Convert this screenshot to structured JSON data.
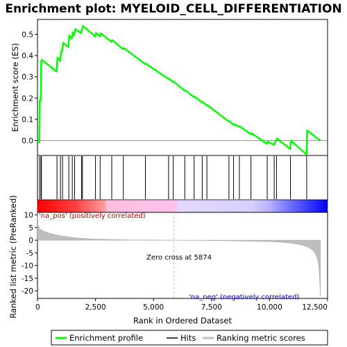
{
  "chart_data": {
    "type": "line",
    "title": "Enrichment plot: MYELOID_CELL_DIFFERENTIATION",
    "xlabel": "Rank in Ordered Dataset",
    "ylabel_top": "Enrichment score (ES)",
    "ylabel_bottom": "Ranked list metric (PreRanked)",
    "xlim": [
      0,
      12500
    ],
    "x_ticks": [
      0,
      2500,
      5000,
      7500,
      10000,
      12500
    ],
    "x_tick_labels": [
      "0",
      "2,500",
      "5,000",
      "7,500",
      "10,000",
      "12,500"
    ],
    "es_ylim": [
      -0.07,
      0.57
    ],
    "es_ticks": [
      0.0,
      0.1,
      0.2,
      0.3,
      0.4,
      0.5
    ],
    "es_tick_labels": [
      "0.0",
      "0.1",
      "0.2",
      "0.3",
      "0.4",
      "0.5"
    ],
    "metric_ylim": [
      -23,
      11
    ],
    "metric_ticks": [
      10,
      5,
      0,
      -5,
      -10,
      -15,
      -20
    ],
    "metric_tick_labels": [
      "10",
      "5",
      "0",
      "-5",
      "-10",
      "-15",
      "-20"
    ],
    "dataset_size": 12190,
    "zero_cross": 5874,
    "hits": [
      90,
      150,
      170,
      840,
      990,
      1080,
      1350,
      1500,
      1600,
      1900,
      1940,
      2500,
      2700,
      3200,
      3700,
      4650,
      5650,
      5850,
      6350,
      6750,
      7100,
      7300,
      8250,
      8450,
      8700,
      9200,
      9900,
      10200,
      10300,
      10900,
      11600
    ],
    "es_profile": {
      "x": [
        0,
        80,
        100,
        150,
        160,
        190,
        820,
        860,
        980,
        1020,
        1060,
        1110,
        1330,
        1370,
        1480,
        1520,
        1580,
        1630,
        1880,
        1900,
        1930,
        1960,
        2490,
        2520,
        2690,
        2720,
        3190,
        3220,
        3690,
        3720,
        4640,
        4670,
        5640,
        5670,
        5840,
        5870,
        6340,
        6370,
        6740,
        6770,
        7090,
        7120,
        7290,
        7320,
        8240,
        8270,
        8440,
        8470,
        8690,
        8720,
        9190,
        9220,
        9890,
        9920,
        10190,
        10220,
        10290,
        10320,
        10890,
        10920,
        11590,
        11620,
        12190
      ],
      "y": [
        0.0,
        -0.008,
        0.19,
        0.19,
        0.375,
        0.38,
        0.325,
        0.39,
        0.375,
        0.42,
        0.42,
        0.46,
        0.44,
        0.495,
        0.48,
        0.51,
        0.495,
        0.525,
        0.505,
        0.518,
        0.525,
        0.54,
        0.49,
        0.507,
        0.49,
        0.505,
        0.465,
        0.473,
        0.43,
        0.435,
        0.36,
        0.362,
        0.29,
        0.292,
        0.275,
        0.277,
        0.235,
        0.237,
        0.205,
        0.207,
        0.18,
        0.182,
        0.165,
        0.167,
        0.09,
        0.092,
        0.075,
        0.077,
        0.065,
        0.067,
        0.03,
        0.035,
        -0.015,
        -0.005,
        -0.02,
        -0.01,
        0.002,
        0.01,
        -0.04,
        0.0,
        -0.065,
        0.048,
        0.0
      ]
    },
    "metric_profile": {
      "x": [
        0,
        30,
        100,
        250,
        500,
        800,
        1100,
        1500,
        2000,
        2500,
        3000,
        3500,
        4000,
        5000,
        5874,
        7000,
        8000,
        9000,
        10000,
        10500,
        11000,
        11300,
        11600,
        11800,
        11950,
        12050,
        12120,
        12160,
        12190
      ],
      "y": [
        10.5,
        6.0,
        4.5,
        3.6,
        2.8,
        2.1,
        1.6,
        1.1,
        0.7,
        0.45,
        0.3,
        0.2,
        0.12,
        0.05,
        0.0,
        -0.08,
        -0.2,
        -0.35,
        -0.55,
        -0.8,
        -1.2,
        -1.7,
        -2.5,
        -3.5,
        -5.0,
        -7.0,
        -10.0,
        -15.0,
        -22.0
      ]
    },
    "annotations": {
      "pos": "'na_pos' (positively correlated)",
      "neg": "'na_neg' (negatively correlated)",
      "zero": "Zero cross at 5874"
    },
    "legend": [
      "Enrichment profile",
      "Hits",
      "Ranking metric scores"
    ],
    "colors": {
      "es_line": "#00ff00",
      "hits": "#000000",
      "metric_fill": "#bebebe",
      "zero_line": "#bebebe",
      "bar_red": "#ff0000",
      "bar_pink": "#ffc0e6",
      "bar_lavender": "#d8d0ff",
      "bar_blue": "#0000ff"
    }
  }
}
